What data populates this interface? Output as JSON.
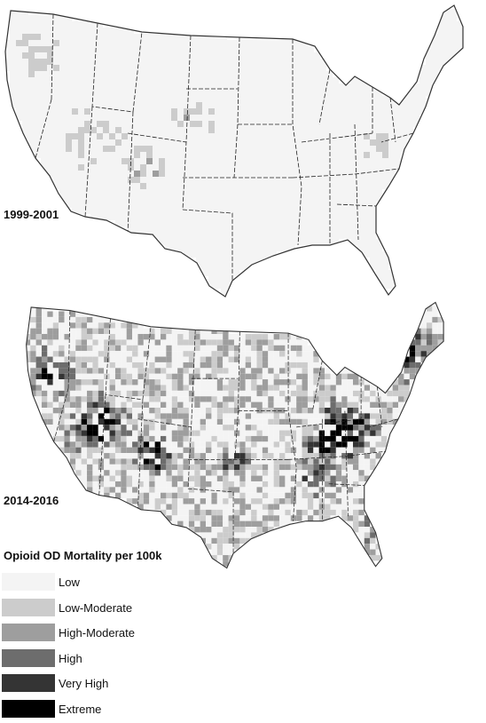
{
  "maps": [
    {
      "period": "1999-2001",
      "intensity": 0.15,
      "hotspots": "mountain-west"
    },
    {
      "period": "2014-2016",
      "intensity": 0.75,
      "hotspots": "appalachia-northeast-southwest"
    }
  ],
  "legend": {
    "title": "Opioid OD Mortality per 100k",
    "items": [
      {
        "label": "Low",
        "color": "#f4f4f4"
      },
      {
        "label": "Low-Moderate",
        "color": "#cccccc"
      },
      {
        "label": "High-Moderate",
        "color": "#9e9e9e"
      },
      {
        "label": "High",
        "color": "#6d6d6d"
      },
      {
        "label": "Very High",
        "color": "#343434"
      },
      {
        "label": "Extreme",
        "color": "#000000"
      }
    ]
  }
}
